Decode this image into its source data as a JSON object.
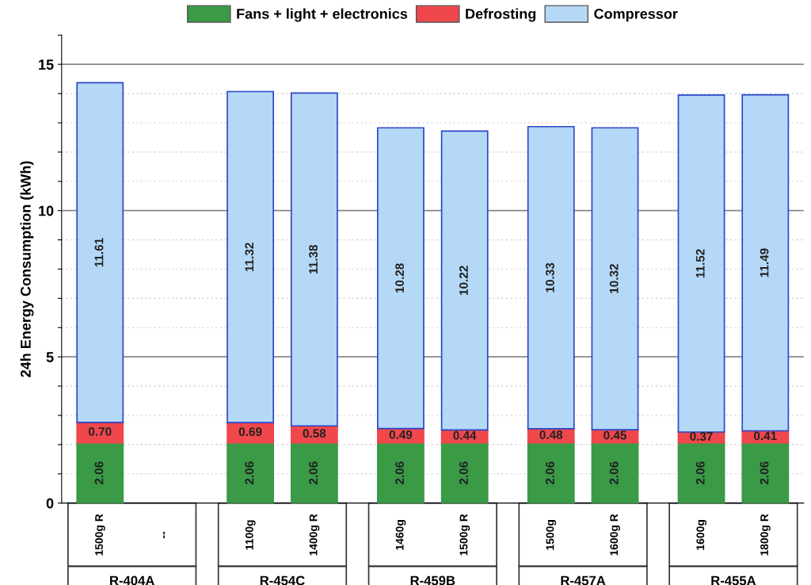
{
  "chart_data": {
    "type": "bar",
    "stacked": true,
    "ylabel": "24h Energy Consumption (kWh)",
    "categories": [
      "1500g R",
      "--",
      "1100g",
      "1400g R",
      "1460g",
      "1500g R",
      "1500g",
      "1600g R",
      "1600g",
      "1800g R"
    ],
    "annotations": [
      "R-404A",
      "R-454C",
      "R-459B",
      "R-457A",
      "R-455A"
    ],
    "series": [
      {
        "name": "Fans + light + electronics",
        "color": "#3a9a46",
        "values": [
          2.06,
          null,
          2.06,
          2.06,
          2.06,
          2.06,
          2.06,
          2.06,
          2.06,
          2.06
        ],
        "value_labels": [
          "2.06",
          null,
          "2.06",
          "2.06",
          "2.06",
          "2.06",
          "2.06",
          "2.06",
          "2.06",
          "2.06"
        ]
      },
      {
        "name": "Defrosting",
        "color": "#f0474c",
        "values": [
          0.7,
          null,
          0.69,
          0.58,
          0.49,
          0.44,
          0.48,
          0.45,
          0.37,
          0.41
        ],
        "value_labels": [
          "0.70",
          null,
          "0.69",
          "0.58",
          "0.49",
          "0.44",
          "0.48",
          "0.45",
          "0.37",
          "0.41"
        ]
      },
      {
        "name": "Compressor",
        "color": "#b5d8f7",
        "values": [
          11.61,
          null,
          11.32,
          11.38,
          10.28,
          10.22,
          10.33,
          10.32,
          11.52,
          11.49
        ],
        "value_labels": [
          "11.61",
          null,
          "11.32",
          "11.38",
          "10.28",
          "10.22",
          "10.33",
          "10.32",
          "11.52",
          "11.49"
        ]
      }
    ],
    "ylim": [
      0,
      16
    ],
    "yticks": [
      0,
      {
        "value": 1,
        "label": null
      },
      {
        "value": 2,
        "label": null
      },
      {
        "value": 3,
        "label": null
      },
      {
        "value": 4,
        "label": null
      },
      5,
      {
        "value": 6,
        "label": null
      },
      {
        "value": 7,
        "label": null
      },
      {
        "value": 8,
        "label": null
      },
      {
        "value": 9,
        "label": null
      },
      10,
      {
        "value": 11,
        "label": null
      },
      {
        "value": 12,
        "label": null
      },
      {
        "value": 13,
        "label": null
      },
      {
        "value": 14,
        "label": null
      },
      15,
      {
        "value": 16,
        "label": null
      }
    ],
    "grid": "y",
    "legend": "top"
  }
}
